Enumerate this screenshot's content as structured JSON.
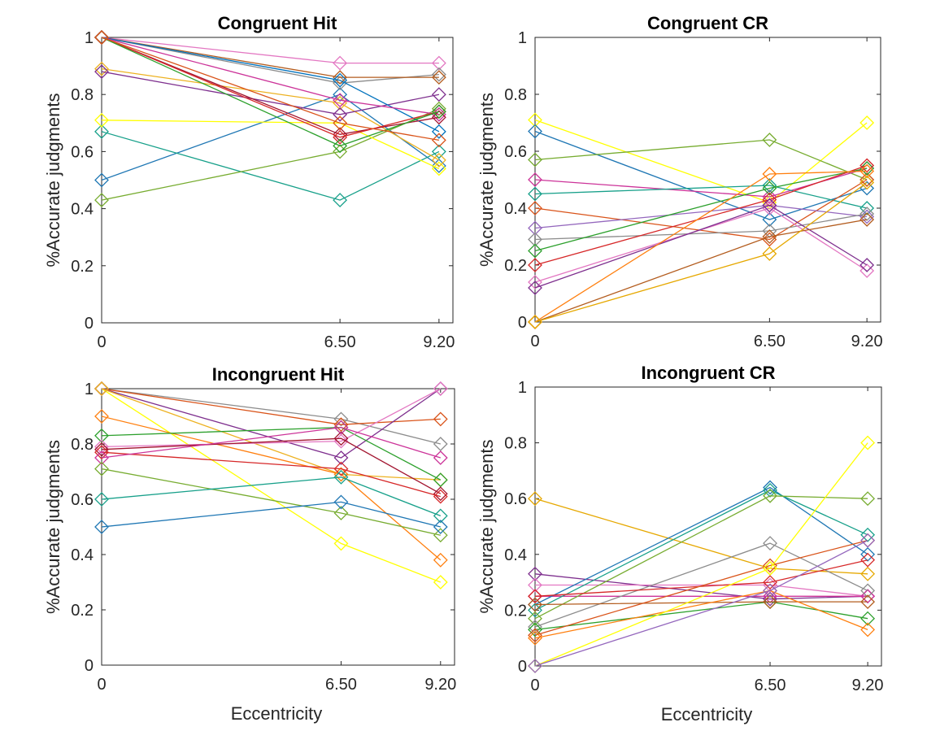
{
  "colors": [
    "#0072BD",
    "#D95319",
    "#EDB120",
    "#7E2F8E",
    "#77AC30",
    "#4DBEEE",
    "#A2142F",
    "#FFFF00",
    "#8C8C8C",
    "#E377C2",
    "#17A08A",
    "#D62728",
    "#1F77B4",
    "#FF7F0E",
    "#9467BD",
    "#2CA02C",
    "#CC3399",
    "#B35C1E",
    "#E6A800"
  ],
  "chart_data": [
    {
      "type": "line",
      "title": "Congruent Hit",
      "xlabel": "",
      "ylabel": "%Accurate judgments",
      "x": [
        0,
        6.5,
        9.2
      ],
      "xticks": [
        "0",
        "6.50",
        "9.20"
      ],
      "ylim": [
        0,
        1
      ],
      "yticks": [
        "0",
        "0.2",
        "0.4",
        "0.6",
        "0.8",
        "1"
      ],
      "marker": "diamond",
      "series": [
        {
          "color": "#1F77B4",
          "values": [
            0.5,
            0.8,
            0.55
          ]
        },
        {
          "color": "#17A08A",
          "values": [
            0.67,
            0.43,
            0.6
          ]
        },
        {
          "color": "#77AC30",
          "values": [
            0.43,
            0.6,
            0.75
          ]
        },
        {
          "color": "#FFFF00",
          "values": [
            0.71,
            0.7,
            0.54
          ]
        },
        {
          "color": "#EDB120",
          "values": [
            0.89,
            0.77,
            0.57
          ]
        },
        {
          "color": "#7E2F8E",
          "values": [
            0.88,
            0.73,
            0.8
          ]
        },
        {
          "color": "#E377C2",
          "values": [
            1.0,
            0.91,
            0.91
          ]
        },
        {
          "color": "#8C8C8C",
          "values": [
            1.0,
            0.84,
            0.87
          ]
        },
        {
          "color": "#B35C1E",
          "values": [
            1.0,
            0.86,
            0.86
          ]
        },
        {
          "color": "#0072BD",
          "values": [
            1.0,
            0.85,
            0.67
          ]
        },
        {
          "color": "#CC3399",
          "values": [
            1.0,
            0.78,
            0.73
          ]
        },
        {
          "color": "#A2142F",
          "values": [
            1.0,
            0.66,
            0.72
          ]
        },
        {
          "color": "#D62728",
          "values": [
            1.0,
            0.65,
            0.74
          ]
        },
        {
          "color": "#2CA02C",
          "values": [
            1.0,
            0.62,
            0.74
          ]
        },
        {
          "color": "#D95319",
          "values": [
            1.0,
            0.7,
            0.64
          ]
        }
      ]
    },
    {
      "type": "line",
      "title": "Congruent CR",
      "xlabel": "",
      "ylabel": "%Accurate judgments",
      "x": [
        0,
        6.5,
        9.2
      ],
      "xticks": [
        "0",
        "6.50",
        "9.20"
      ],
      "ylim": [
        0,
        1
      ],
      "yticks": [
        "0",
        "0.2",
        "0.4",
        "0.6",
        "0.8",
        "1"
      ],
      "marker": "diamond",
      "series": [
        {
          "color": "#FFFF00",
          "values": [
            0.71,
            0.42,
            0.7
          ]
        },
        {
          "color": "#1F77B4",
          "values": [
            0.67,
            0.36,
            0.47
          ]
        },
        {
          "color": "#77AC30",
          "values": [
            0.57,
            0.64,
            0.5
          ]
        },
        {
          "color": "#CC3399",
          "values": [
            0.5,
            0.44,
            0.54
          ]
        },
        {
          "color": "#17A08A",
          "values": [
            0.45,
            0.48,
            0.4
          ]
        },
        {
          "color": "#D95319",
          "values": [
            0.4,
            0.29,
            0.5
          ]
        },
        {
          "color": "#9467BD",
          "values": [
            0.33,
            0.41,
            0.37
          ]
        },
        {
          "color": "#8C8C8C",
          "values": [
            0.29,
            0.32,
            0.38
          ]
        },
        {
          "color": "#2CA02C",
          "values": [
            0.25,
            0.47,
            0.54
          ]
        },
        {
          "color": "#D62728",
          "values": [
            0.2,
            0.43,
            0.55
          ]
        },
        {
          "color": "#E377C2",
          "values": [
            0.14,
            0.4,
            0.18
          ]
        },
        {
          "color": "#7E2F8E",
          "values": [
            0.12,
            0.41,
            0.2
          ]
        },
        {
          "color": "#FF7F0E",
          "values": [
            0.0,
            0.52,
            0.53
          ]
        },
        {
          "color": "#B35C1E",
          "values": [
            0.0,
            0.3,
            0.36
          ]
        },
        {
          "color": "#E6A800",
          "values": [
            0.0,
            0.24,
            0.49
          ]
        }
      ]
    },
    {
      "type": "line",
      "title": "Incongruent Hit",
      "xlabel": "Eccentricity",
      "ylabel": "%Accurate judgments",
      "x": [
        0,
        6.5,
        9.2
      ],
      "xticks": [
        "0",
        "6.50",
        "9.20"
      ],
      "ylim": [
        0,
        1
      ],
      "yticks": [
        "0",
        "0.2",
        "0.4",
        "0.6",
        "0.8",
        "1"
      ],
      "marker": "diamond",
      "series": [
        {
          "color": "#FFFF00",
          "values": [
            1.0,
            0.44,
            0.3
          ]
        },
        {
          "color": "#8C8C8C",
          "values": [
            1.0,
            0.89,
            0.8
          ]
        },
        {
          "color": "#D95319",
          "values": [
            1.0,
            0.87,
            0.89
          ]
        },
        {
          "color": "#7E2F8E",
          "values": [
            1.0,
            0.75,
            1.0
          ]
        },
        {
          "color": "#EDB120",
          "values": [
            1.0,
            0.69,
            0.67
          ]
        },
        {
          "color": "#FF7F0E",
          "values": [
            0.9,
            0.69,
            0.38
          ]
        },
        {
          "color": "#2CA02C",
          "values": [
            0.83,
            0.86,
            0.67
          ]
        },
        {
          "color": "#E377C2",
          "values": [
            0.79,
            0.81,
            1.0
          ]
        },
        {
          "color": "#A2142F",
          "values": [
            0.78,
            0.82,
            0.62
          ]
        },
        {
          "color": "#D62728",
          "values": [
            0.77,
            0.71,
            0.61
          ]
        },
        {
          "color": "#CC3399",
          "values": [
            0.75,
            0.86,
            0.75
          ]
        },
        {
          "color": "#77AC30",
          "values": [
            0.71,
            0.55,
            0.47
          ]
        },
        {
          "color": "#17A08A",
          "values": [
            0.6,
            0.68,
            0.54
          ]
        },
        {
          "color": "#1F77B4",
          "values": [
            0.5,
            0.59,
            0.5
          ]
        }
      ]
    },
    {
      "type": "line",
      "title": "Incongruent CR",
      "xlabel": "Eccentricity",
      "ylabel": "%Accurate judgments",
      "x": [
        0,
        6.5,
        9.2
      ],
      "xticks": [
        "0",
        "6.50",
        "9.20"
      ],
      "ylim": [
        0,
        1
      ],
      "yticks": [
        "0",
        "0.2",
        "0.4",
        "0.6",
        "0.8",
        "1"
      ],
      "marker": "diamond",
      "series": [
        {
          "color": "#E6A800",
          "values": [
            0.6,
            0.35,
            0.33
          ]
        },
        {
          "color": "#7E2F8E",
          "values": [
            0.33,
            0.24,
            0.25
          ]
        },
        {
          "color": "#E377C2",
          "values": [
            0.29,
            0.29,
            0.25
          ]
        },
        {
          "color": "#CC3399",
          "values": [
            0.25,
            0.25,
            0.25
          ]
        },
        {
          "color": "#1F77B4",
          "values": [
            0.22,
            0.64,
            0.4
          ]
        },
        {
          "color": "#17A08A",
          "values": [
            0.2,
            0.63,
            0.47
          ]
        },
        {
          "color": "#77AC30",
          "values": [
            0.17,
            0.61,
            0.6
          ]
        },
        {
          "color": "#8C8C8C",
          "values": [
            0.14,
            0.44,
            0.27
          ]
        },
        {
          "color": "#2CA02C",
          "values": [
            0.13,
            0.23,
            0.17
          ]
        },
        {
          "color": "#D62728",
          "values": [
            0.25,
            0.3,
            0.38
          ]
        },
        {
          "color": "#B35C1E",
          "values": [
            0.22,
            0.23,
            0.23
          ]
        },
        {
          "color": "#D95319",
          "values": [
            0.11,
            0.36,
            0.45
          ]
        },
        {
          "color": "#FF7F0E",
          "values": [
            0.1,
            0.27,
            0.13
          ]
        },
        {
          "color": "#FFFF00",
          "values": [
            0.0,
            0.35,
            0.8
          ]
        },
        {
          "color": "#9467BD",
          "values": [
            0.0,
            0.27,
            0.45
          ]
        }
      ]
    }
  ]
}
